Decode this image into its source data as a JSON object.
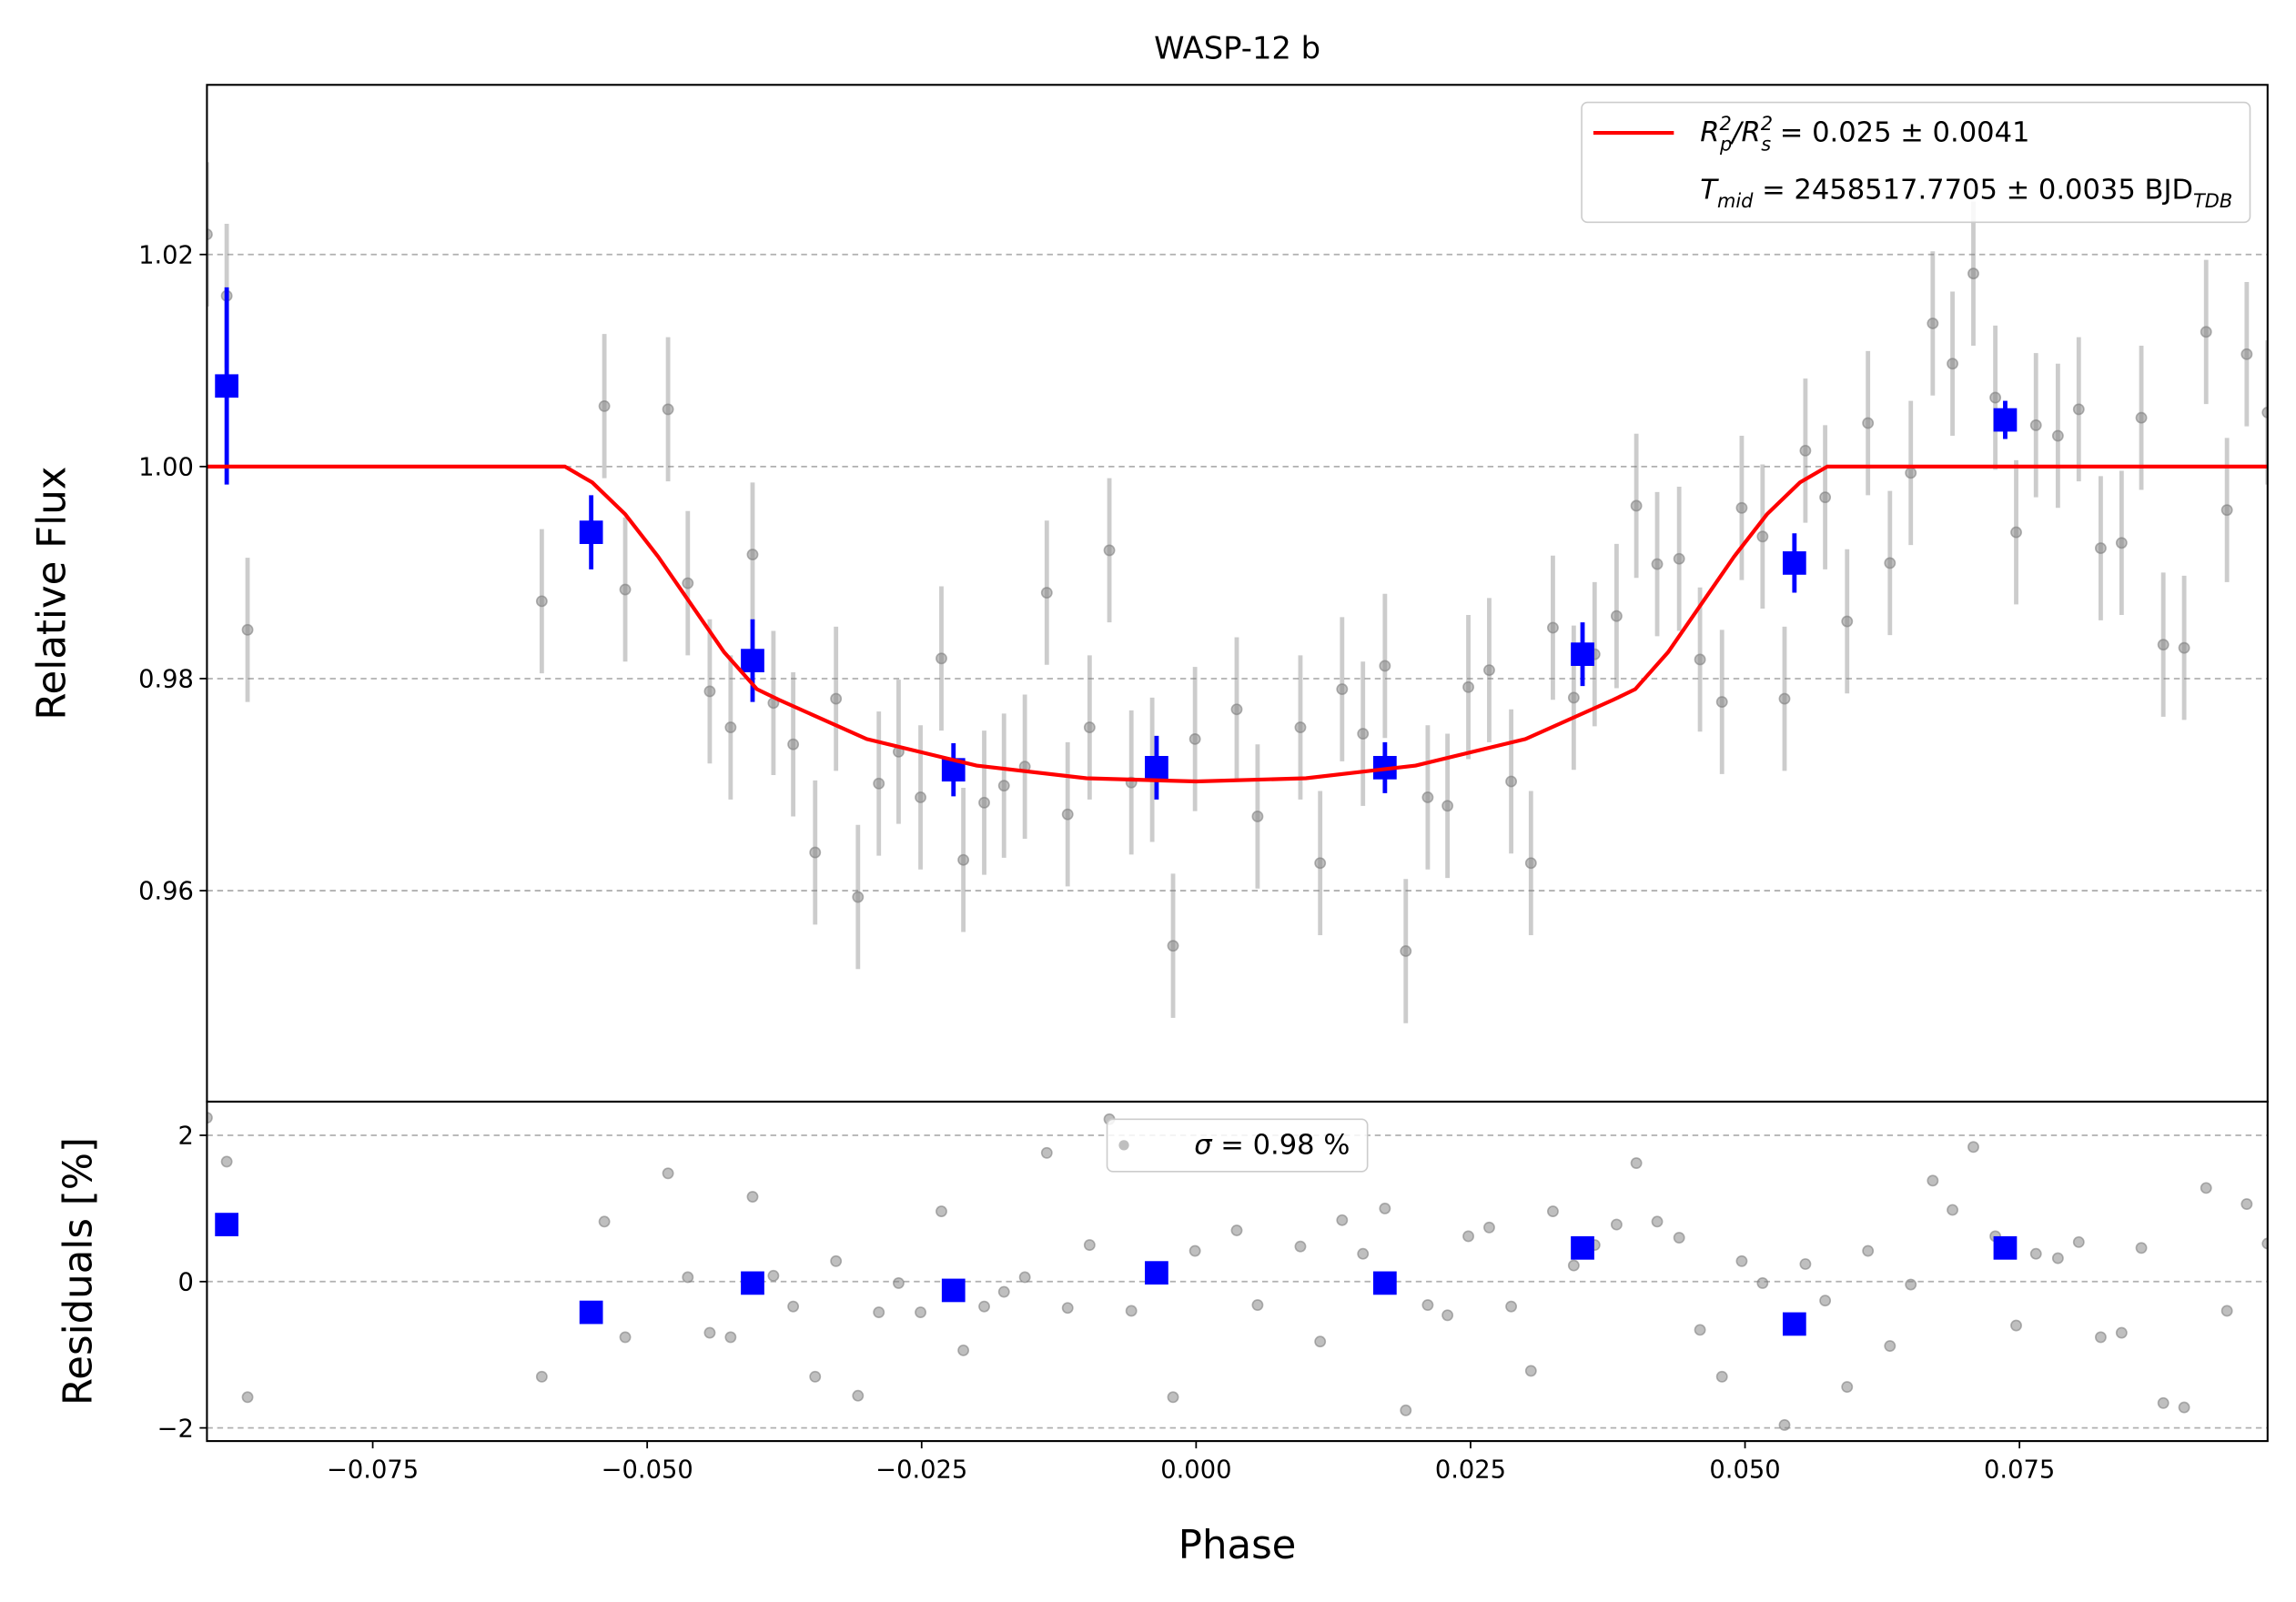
{
  "chart_data": [
    {
      "type": "scatter",
      "title": "WASP-12 b",
      "ylabel": "Relative Flux",
      "xlim": [
        -0.0901,
        0.0976
      ],
      "ylim": [
        0.9401,
        1.036
      ],
      "yticks": [
        0.96,
        0.98,
        {
          "value": 1.0,
          "label": "1.00"
        },
        1.02
      ],
      "grid": true,
      "legend": "upper right",
      "series": [
        {
          "color": "#808080",
          "x": [
            -0.0901,
            -0.0883,
            -0.0864,
            -0.0596,
            -0.0539,
            -0.052,
            -0.0481,
            -0.0463,
            -0.0443,
            -0.0424,
            -0.0404,
            -0.0385,
            -0.0367,
            -0.0347,
            -0.0328,
            -0.0308,
            -0.0289,
            -0.0271,
            -0.0251,
            -0.0232,
            -0.0212,
            -0.0193,
            -0.0175,
            -0.0156,
            -0.0136,
            -0.0117,
            -0.0097,
            -0.0079,
            -0.0059,
            -0.004,
            -0.0021,
            -0.0001,
            0.0037,
            0.0056,
            0.0095,
            0.0113,
            0.0133,
            0.0152,
            0.0172,
            0.0191,
            0.0211,
            0.0229,
            0.0248,
            0.0267,
            0.0287,
            0.0305,
            0.0325,
            0.0344,
            0.0363,
            0.0383,
            0.0401,
            0.042,
            0.044,
            0.0459,
            0.0479,
            0.0497,
            0.0516,
            0.0536,
            0.0555,
            0.0573,
            0.0593,
            0.0612,
            0.0632,
            0.0651,
            0.0671,
            0.0689,
            0.0708,
            0.0728,
            0.0747,
            0.0765,
            0.0785,
            0.0804,
            0.0824,
            0.0843,
            0.0861,
            0.0881,
            0.09,
            0.092,
            0.0939,
            0.0957,
            0.0976
          ],
          "values": [
            1.0219,
            1.0161,
            0.9846,
            0.9873,
            1.0057,
            0.9884,
            1.0054,
            0.989,
            0.9788,
            0.9754,
            0.9917,
            0.9777,
            0.9738,
            0.9636,
            0.9781,
            0.9594,
            0.9701,
            0.9731,
            0.9688,
            0.9819,
            0.9629,
            0.9683,
            0.9699,
            0.9717,
            0.9881,
            0.9672,
            0.9754,
            0.9921,
            0.9702,
            0.9714,
            0.9548,
            0.9743,
            0.9771,
            0.967,
            0.9754,
            0.9626,
            0.979,
            0.9748,
            0.9812,
            0.9543,
            0.9688,
            0.968,
            0.9792,
            0.9808,
            0.9703,
            0.9626,
            0.9848,
            0.9782,
            0.9823,
            0.9859,
            0.9963,
            0.9908,
            0.9913,
            0.9818,
            0.9778,
            0.9961,
            0.9934,
            0.9781,
            1.0015,
            0.9971,
            0.9854,
            1.0041,
            0.9909,
            0.9994,
            1.0135,
            1.0097,
            1.0182,
            1.0065,
            0.9938,
            1.0039,
            1.0029,
            1.0054,
            0.9923,
            0.9928,
            1.0046,
            0.9832,
            0.9829,
            1.0127,
            0.9959,
            1.0106,
            1.0051
          ],
          "errors": [
            0.0068,
            0.0068,
            0.0068,
            0.0068,
            0.0068,
            0.0068,
            0.0068,
            0.0068,
            0.0068,
            0.0068,
            0.0068,
            0.0068,
            0.0068,
            0.0068,
            0.0068,
            0.0068,
            0.0068,
            0.0068,
            0.0068,
            0.0068,
            0.0068,
            0.0068,
            0.0068,
            0.0068,
            0.0068,
            0.0068,
            0.0068,
            0.0068,
            0.0068,
            0.0068,
            0.0068,
            0.0068,
            0.0068,
            0.0068,
            0.0068,
            0.0068,
            0.0068,
            0.0068,
            0.0068,
            0.0068,
            0.0068,
            0.0068,
            0.0068,
            0.0068,
            0.0068,
            0.0068,
            0.0068,
            0.0068,
            0.0068,
            0.0068,
            0.0068,
            0.0068,
            0.0068,
            0.0068,
            0.0068,
            0.0068,
            0.0068,
            0.0068,
            0.0068,
            0.0068,
            0.0068,
            0.0068,
            0.0068,
            0.0068,
            0.0068,
            0.0068,
            0.0068,
            0.0068,
            0.0068,
            0.0068,
            0.0068,
            0.0068,
            0.0068,
            0.0068,
            0.0068,
            0.0068,
            0.0068,
            0.0068,
            0.0068,
            0.0068,
            0.0068
          ]
        },
        {
          "color": "#0000ff",
          "marker": "square",
          "x": [
            -0.0883,
            -0.0551,
            -0.0404,
            -0.0221,
            -0.0036,
            0.0172,
            0.0352,
            0.0545,
            0.0737
          ],
          "values": [
            1.0076,
            0.9938,
            0.9817,
            0.9714,
            0.9716,
            0.9716,
            0.9823,
            0.9909,
            1.0044
          ],
          "errors": [
            0.0093,
            0.0035,
            0.0039,
            0.0025,
            0.003,
            0.0024,
            0.003,
            0.0028,
            0.0018
          ]
        },
        {
          "type": "line",
          "color": "#ff0000",
          "x": [
            -0.0901,
            -0.0575,
            -0.055,
            -0.052,
            -0.049,
            -0.046,
            -0.043,
            -0.04,
            -0.038,
            -0.03,
            -0.02,
            -0.01,
            0,
            0.01,
            0.02,
            0.03,
            0.038,
            0.04,
            0.043,
            0.046,
            0.049,
            0.052,
            0.055,
            0.0575,
            0.0976
          ],
          "values": [
            1,
            1,
            0.9985,
            0.9955,
            0.9915,
            0.987,
            0.9825,
            0.979,
            0.978,
            0.9743,
            0.9718,
            0.9706,
            0.9703,
            0.9706,
            0.9718,
            0.9743,
            0.978,
            0.979,
            0.9825,
            0.987,
            0.9915,
            0.9955,
            0.9985,
            1,
            1
          ],
          "legend_parts": [
            [
              [
                "R",
                "i"
              ],
              [
                "2",
                "sup"
              ],
              [
                "p",
                "sub"
              ],
              [
                "/R",
                "i"
              ],
              [
                "2",
                "sup"
              ],
              [
                "s",
                "sub"
              ],
              [
                " = 0.025 ± 0.0041",
                "n"
              ]
            ],
            [
              [
                "T",
                "i"
              ],
              [
                "mid",
                "sub"
              ],
              [
                " = 2458517.7705 ± 0.0035 BJD",
                "n"
              ],
              [
                "TDB",
                "sub"
              ]
            ]
          ]
        }
      ]
    },
    {
      "type": "scatter",
      "ylabel": "Residuals [%]",
      "xlabel": "Phase",
      "xlim": [
        -0.0901,
        0.0976
      ],
      "ylim": [
        -2.18,
        2.46
      ],
      "xticks": [
        {
          "value": -0.075,
          "label": "−0.075"
        },
        {
          "value": -0.05,
          "label": "−0.050"
        },
        {
          "value": -0.025,
          "label": "−0.025"
        },
        {
          "value": 0,
          "label": "0.000"
        },
        0.025,
        {
          "value": 0.05,
          "label": "0.050"
        },
        0.075
      ],
      "yticks": [
        {
          "value": -2,
          "label": "−2"
        },
        0,
        2
      ],
      "grid": true,
      "legend": "upper center",
      "series": [
        {
          "color": "#808080",
          "x": [
            -0.0901,
            -0.0883,
            -0.0864,
            -0.0596,
            -0.0539,
            -0.052,
            -0.0481,
            -0.0463,
            -0.0443,
            -0.0424,
            -0.0404,
            -0.0385,
            -0.0367,
            -0.0347,
            -0.0328,
            -0.0308,
            -0.0289,
            -0.0271,
            -0.0251,
            -0.0232,
            -0.0212,
            -0.0193,
            -0.0175,
            -0.0156,
            -0.0136,
            -0.0117,
            -0.0097,
            -0.0079,
            -0.0059,
            -0.004,
            -0.0021,
            -0.0001,
            0.0037,
            0.0056,
            0.0095,
            0.0113,
            0.0133,
            0.0152,
            0.0172,
            0.0191,
            0.0211,
            0.0229,
            0.0248,
            0.0267,
            0.0287,
            0.0305,
            0.0325,
            0.0344,
            0.0363,
            0.0383,
            0.0401,
            0.042,
            0.044,
            0.0459,
            0.0479,
            0.0497,
            0.0516,
            0.0536,
            0.0555,
            0.0573,
            0.0593,
            0.0612,
            0.0632,
            0.0651,
            0.0671,
            0.0689,
            0.0708,
            0.0728,
            0.0747,
            0.0765,
            0.0785,
            0.0804,
            0.0824,
            0.0843,
            0.0861,
            0.0881,
            0.09,
            0.092,
            0.0939,
            0.0957,
            0.0976
          ],
          "values": [
            2.24,
            1.64,
            -1.58,
            -1.3,
            0.82,
            -0.76,
            1.48,
            0.06,
            -0.7,
            -0.76,
            1.16,
            0.08,
            -0.34,
            -1.3,
            0.28,
            -1.56,
            -0.42,
            -0.02,
            -0.42,
            0.96,
            -0.94,
            -0.34,
            -0.14,
            0.06,
            1.76,
            -0.36,
            0.5,
            2.22,
            -0.4,
            0.1,
            -1.58,
            0.42,
            0.7,
            -0.32,
            0.48,
            -0.82,
            0.84,
            0.38,
            1.0,
            -1.76,
            -0.32,
            -0.46,
            0.62,
            0.74,
            -0.34,
            -1.22,
            0.96,
            0.22,
            0.5,
            0.78,
            1.62,
            0.82,
            0.6,
            -0.66,
            -1.3,
            0.28,
            -0.02,
            -1.96,
            0.24,
            -0.26,
            -1.44,
            0.42,
            -0.88,
            -0.04,
            1.38,
            0.98,
            1.84,
            0.62,
            -0.6,
            0.38,
            0.32,
            0.54,
            -0.76,
            -0.7,
            0.46,
            -1.66,
            -1.72,
            1.28,
            -0.4,
            1.06,
            0.52
          ],
          "legend_parts": [
            [
              [
                "σ",
                "i"
              ],
              [
                " = 0.98 %",
                "n"
              ]
            ]
          ]
        },
        {
          "color": "#0000ff",
          "marker": "square",
          "x": [
            -0.0883,
            -0.0551,
            -0.0404,
            -0.0221,
            -0.0036,
            0.0172,
            0.0352,
            0.0545,
            0.0737
          ],
          "values": [
            0.78,
            -0.42,
            -0.02,
            -0.12,
            0.12,
            -0.02,
            0.46,
            -0.58,
            0.46
          ]
        }
      ]
    }
  ]
}
